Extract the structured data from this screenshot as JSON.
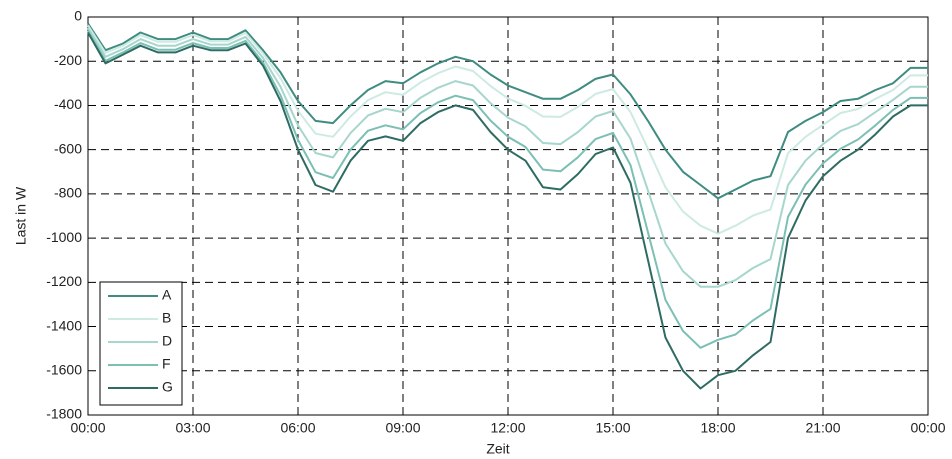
{
  "chart_data": {
    "type": "line",
    "x_label": "Zeit",
    "y_label": "Last in W",
    "x": [
      0,
      0.5,
      1,
      1.5,
      2,
      2.5,
      3,
      3.5,
      4,
      4.5,
      5,
      5.5,
      6,
      6.5,
      7,
      7.5,
      8,
      8.5,
      9,
      9.5,
      10,
      10.5,
      11,
      11.5,
      12,
      12.5,
      13,
      13.5,
      14,
      14.5,
      15,
      15.5,
      16,
      16.5,
      17,
      17.5,
      18,
      18.5,
      19,
      19.5,
      20,
      20.5,
      21,
      21.5,
      22,
      22.5,
      23,
      23.5,
      24
    ],
    "xlim": [
      0,
      24
    ],
    "xticks": [
      {
        "value": 0,
        "label": "00:00"
      },
      {
        "value": 3,
        "label": "03:00"
      },
      {
        "value": 6,
        "label": "06:00"
      },
      {
        "value": 9,
        "label": "09:00"
      },
      {
        "value": 12,
        "label": "12:00"
      },
      {
        "value": 15,
        "label": "15:00"
      },
      {
        "value": 18,
        "label": "18:00"
      },
      {
        "value": 21,
        "label": "21:00"
      },
      {
        "value": 24,
        "label": "00:00"
      }
    ],
    "ylim": [
      -1800,
      0
    ],
    "yticks": [
      -1800,
      -1600,
      -1400,
      -1200,
      -1000,
      -800,
      -600,
      -400,
      -200,
      0
    ],
    "grid": true,
    "legend": "lower left",
    "series": [
      {
        "name": "A",
        "color": "#3f8c82",
        "values": [
          -30,
          -150,
          -120,
          -70,
          -100,
          -100,
          -70,
          -100,
          -100,
          -60,
          -150,
          -250,
          -380,
          -470,
          -480,
          -400,
          -330,
          -290,
          -300,
          -250,
          -210,
          -180,
          -200,
          -260,
          -310,
          -340,
          -370,
          -370,
          -330,
          -280,
          -260,
          -350,
          -470,
          -600,
          -700,
          -760,
          -820,
          -780,
          -740,
          -720,
          -520,
          -470,
          -430,
          -380,
          -370,
          -330,
          -300,
          -230,
          -230
        ]
      },
      {
        "name": "B",
        "color": "#cdeae3",
        "values": [
          -38,
          -162,
          -130,
          -82,
          -112,
          -112,
          -82,
          -110,
          -110,
          -72,
          -164,
          -276,
          -424,
          -528,
          -542,
          -450,
          -376,
          -340,
          -352,
          -296,
          -254,
          -224,
          -244,
          -312,
          -368,
          -402,
          -450,
          -452,
          -406,
          -348,
          -326,
          -430,
          -596,
          -770,
          -880,
          -944,
          -980,
          -944,
          -898,
          -870,
          -616,
          -542,
          -488,
          -434,
          -416,
          -370,
          -330,
          -264,
          -264
        ]
      },
      {
        "name": "D",
        "color": "#a6d6cc",
        "values": [
          -50,
          -180,
          -145,
          -100,
          -130,
          -130,
          -100,
          -125,
          -125,
          -90,
          -185,
          -315,
          -490,
          -615,
          -635,
          -525,
          -445,
          -415,
          -430,
          -365,
          -320,
          -290,
          -310,
          -390,
          -455,
          -495,
          -570,
          -575,
          -520,
          -450,
          -425,
          -550,
          -785,
          -1025,
          -1150,
          -1220,
          -1220,
          -1190,
          -1135,
          -1095,
          -760,
          -650,
          -575,
          -515,
          -485,
          -430,
          -375,
          -315,
          -315
        ]
      },
      {
        "name": "F",
        "color": "#7cbfb4",
        "values": [
          -62,
          -198,
          -160,
          -118,
          -148,
          -148,
          -118,
          -140,
          -140,
          -108,
          -206,
          -354,
          -556,
          -702,
          -728,
          -600,
          -514,
          -490,
          -508,
          -434,
          -386,
          -356,
          -376,
          -468,
          -542,
          -588,
          -690,
          -698,
          -634,
          -552,
          -524,
          -670,
          -974,
          -1280,
          -1420,
          -1496,
          -1460,
          -1436,
          -1372,
          -1320,
          -904,
          -758,
          -662,
          -596,
          -554,
          -490,
          -420,
          -366,
          -366
        ]
      },
      {
        "name": "G",
        "color": "#2e6c63",
        "values": [
          -70,
          -210,
          -170,
          -130,
          -160,
          -160,
          -130,
          -150,
          -150,
          -120,
          -220,
          -380,
          -600,
          -760,
          -790,
          -650,
          -560,
          -540,
          -560,
          -480,
          -430,
          -400,
          -420,
          -520,
          -600,
          -650,
          -770,
          -780,
          -710,
          -620,
          -590,
          -750,
          -1100,
          -1450,
          -1600,
          -1680,
          -1620,
          -1600,
          -1530,
          -1470,
          -1000,
          -830,
          -720,
          -650,
          -600,
          -530,
          -450,
          -400,
          -400
        ]
      }
    ]
  }
}
